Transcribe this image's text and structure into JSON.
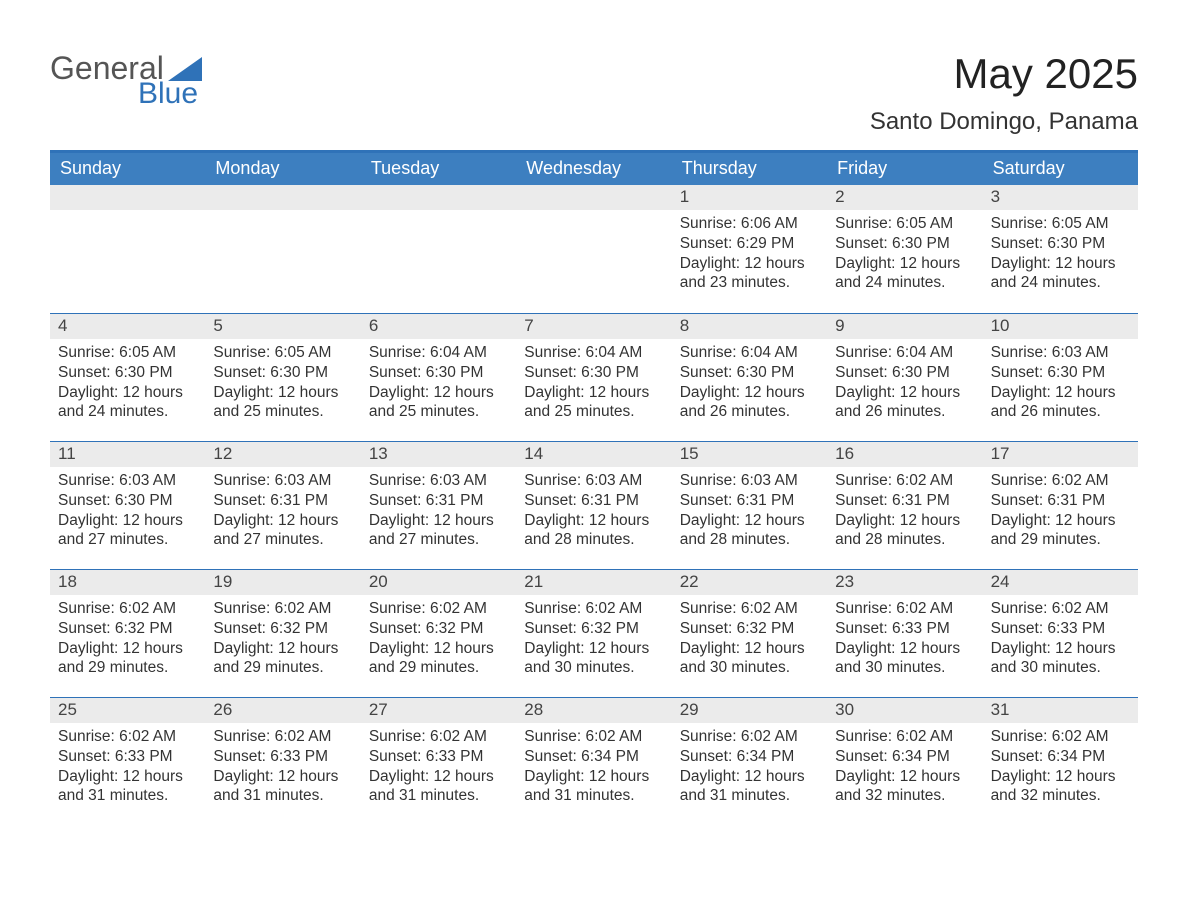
{
  "logo": {
    "text_general": "General",
    "text_blue": "Blue",
    "triangle_color": "#2f72b8"
  },
  "title": "May 2025",
  "location": "Santo Domingo, Panama",
  "colors": {
    "header_bg": "#3d7fc0",
    "header_border": "#2f72b8",
    "daynum_bg": "#ebebeb",
    "text": "#333333"
  },
  "days_of_week": [
    "Sunday",
    "Monday",
    "Tuesday",
    "Wednesday",
    "Thursday",
    "Friday",
    "Saturday"
  ],
  "weeks": [
    [
      {
        "n": "",
        "sunrise": "",
        "sunset": "",
        "daylight": ""
      },
      {
        "n": "",
        "sunrise": "",
        "sunset": "",
        "daylight": ""
      },
      {
        "n": "",
        "sunrise": "",
        "sunset": "",
        "daylight": ""
      },
      {
        "n": "",
        "sunrise": "",
        "sunset": "",
        "daylight": ""
      },
      {
        "n": "1",
        "sunrise": "Sunrise: 6:06 AM",
        "sunset": "Sunset: 6:29 PM",
        "daylight": "Daylight: 12 hours and 23 minutes."
      },
      {
        "n": "2",
        "sunrise": "Sunrise: 6:05 AM",
        "sunset": "Sunset: 6:30 PM",
        "daylight": "Daylight: 12 hours and 24 minutes."
      },
      {
        "n": "3",
        "sunrise": "Sunrise: 6:05 AM",
        "sunset": "Sunset: 6:30 PM",
        "daylight": "Daylight: 12 hours and 24 minutes."
      }
    ],
    [
      {
        "n": "4",
        "sunrise": "Sunrise: 6:05 AM",
        "sunset": "Sunset: 6:30 PM",
        "daylight": "Daylight: 12 hours and 24 minutes."
      },
      {
        "n": "5",
        "sunrise": "Sunrise: 6:05 AM",
        "sunset": "Sunset: 6:30 PM",
        "daylight": "Daylight: 12 hours and 25 minutes."
      },
      {
        "n": "6",
        "sunrise": "Sunrise: 6:04 AM",
        "sunset": "Sunset: 6:30 PM",
        "daylight": "Daylight: 12 hours and 25 minutes."
      },
      {
        "n": "7",
        "sunrise": "Sunrise: 6:04 AM",
        "sunset": "Sunset: 6:30 PM",
        "daylight": "Daylight: 12 hours and 25 minutes."
      },
      {
        "n": "8",
        "sunrise": "Sunrise: 6:04 AM",
        "sunset": "Sunset: 6:30 PM",
        "daylight": "Daylight: 12 hours and 26 minutes."
      },
      {
        "n": "9",
        "sunrise": "Sunrise: 6:04 AM",
        "sunset": "Sunset: 6:30 PM",
        "daylight": "Daylight: 12 hours and 26 minutes."
      },
      {
        "n": "10",
        "sunrise": "Sunrise: 6:03 AM",
        "sunset": "Sunset: 6:30 PM",
        "daylight": "Daylight: 12 hours and 26 minutes."
      }
    ],
    [
      {
        "n": "11",
        "sunrise": "Sunrise: 6:03 AM",
        "sunset": "Sunset: 6:30 PM",
        "daylight": "Daylight: 12 hours and 27 minutes."
      },
      {
        "n": "12",
        "sunrise": "Sunrise: 6:03 AM",
        "sunset": "Sunset: 6:31 PM",
        "daylight": "Daylight: 12 hours and 27 minutes."
      },
      {
        "n": "13",
        "sunrise": "Sunrise: 6:03 AM",
        "sunset": "Sunset: 6:31 PM",
        "daylight": "Daylight: 12 hours and 27 minutes."
      },
      {
        "n": "14",
        "sunrise": "Sunrise: 6:03 AM",
        "sunset": "Sunset: 6:31 PM",
        "daylight": "Daylight: 12 hours and 28 minutes."
      },
      {
        "n": "15",
        "sunrise": "Sunrise: 6:03 AM",
        "sunset": "Sunset: 6:31 PM",
        "daylight": "Daylight: 12 hours and 28 minutes."
      },
      {
        "n": "16",
        "sunrise": "Sunrise: 6:02 AM",
        "sunset": "Sunset: 6:31 PM",
        "daylight": "Daylight: 12 hours and 28 minutes."
      },
      {
        "n": "17",
        "sunrise": "Sunrise: 6:02 AM",
        "sunset": "Sunset: 6:31 PM",
        "daylight": "Daylight: 12 hours and 29 minutes."
      }
    ],
    [
      {
        "n": "18",
        "sunrise": "Sunrise: 6:02 AM",
        "sunset": "Sunset: 6:32 PM",
        "daylight": "Daylight: 12 hours and 29 minutes."
      },
      {
        "n": "19",
        "sunrise": "Sunrise: 6:02 AM",
        "sunset": "Sunset: 6:32 PM",
        "daylight": "Daylight: 12 hours and 29 minutes."
      },
      {
        "n": "20",
        "sunrise": "Sunrise: 6:02 AM",
        "sunset": "Sunset: 6:32 PM",
        "daylight": "Daylight: 12 hours and 29 minutes."
      },
      {
        "n": "21",
        "sunrise": "Sunrise: 6:02 AM",
        "sunset": "Sunset: 6:32 PM",
        "daylight": "Daylight: 12 hours and 30 minutes."
      },
      {
        "n": "22",
        "sunrise": "Sunrise: 6:02 AM",
        "sunset": "Sunset: 6:32 PM",
        "daylight": "Daylight: 12 hours and 30 minutes."
      },
      {
        "n": "23",
        "sunrise": "Sunrise: 6:02 AM",
        "sunset": "Sunset: 6:33 PM",
        "daylight": "Daylight: 12 hours and 30 minutes."
      },
      {
        "n": "24",
        "sunrise": "Sunrise: 6:02 AM",
        "sunset": "Sunset: 6:33 PM",
        "daylight": "Daylight: 12 hours and 30 minutes."
      }
    ],
    [
      {
        "n": "25",
        "sunrise": "Sunrise: 6:02 AM",
        "sunset": "Sunset: 6:33 PM",
        "daylight": "Daylight: 12 hours and 31 minutes."
      },
      {
        "n": "26",
        "sunrise": "Sunrise: 6:02 AM",
        "sunset": "Sunset: 6:33 PM",
        "daylight": "Daylight: 12 hours and 31 minutes."
      },
      {
        "n": "27",
        "sunrise": "Sunrise: 6:02 AM",
        "sunset": "Sunset: 6:33 PM",
        "daylight": "Daylight: 12 hours and 31 minutes."
      },
      {
        "n": "28",
        "sunrise": "Sunrise: 6:02 AM",
        "sunset": "Sunset: 6:34 PM",
        "daylight": "Daylight: 12 hours and 31 minutes."
      },
      {
        "n": "29",
        "sunrise": "Sunrise: 6:02 AM",
        "sunset": "Sunset: 6:34 PM",
        "daylight": "Daylight: 12 hours and 31 minutes."
      },
      {
        "n": "30",
        "sunrise": "Sunrise: 6:02 AM",
        "sunset": "Sunset: 6:34 PM",
        "daylight": "Daylight: 12 hours and 32 minutes."
      },
      {
        "n": "31",
        "sunrise": "Sunrise: 6:02 AM",
        "sunset": "Sunset: 6:34 PM",
        "daylight": "Daylight: 12 hours and 32 minutes."
      }
    ]
  ]
}
